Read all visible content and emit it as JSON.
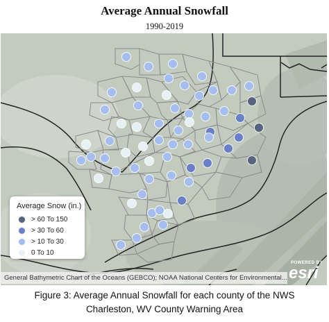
{
  "title": "Average Annual Snowfall",
  "subtitle": "1990-2019",
  "legend": {
    "title": "Average Snow (in.)",
    "items": [
      {
        "label": "> 60 To 150",
        "color": "#56647f"
      },
      {
        "label": "> 30 To 60",
        "color": "#6a80c6"
      },
      {
        "label": "> 10 To 30",
        "color": "#a6bdf0"
      },
      {
        "label": "0 To 10",
        "color": "#e5f1f4"
      }
    ]
  },
  "attribution": "General Bathymetric Chart of the Oceans (GEBCO); NOAA National Centers for Environmental...",
  "esri": {
    "powered_by": "POWERED BY",
    "logo": "esri"
  },
  "caption": {
    "line1": "Figure 3:  Average Annual Snowfall for each county of the NWS",
    "line2": "Charleston, WV County Warning Area"
  },
  "county_classes": [
    "> 10 To 30",
    "> 10 To 30",
    "> 10 To 30",
    "> 10 To 30",
    "> 10 To 30",
    "> 10 To 30",
    "> 10 To 30",
    "> 10 To 30",
    "> 10 To 30",
    "0 To 10",
    "0 To 10",
    "> 10 To 30",
    "> 10 To 30",
    "> 10 To 30",
    "> 10 To 30",
    "> 60 To 150",
    "0 To 10",
    "> 10 To 30",
    "> 10 To 30",
    "> 10 To 30",
    "> 10 To 30",
    "> 30 To 60",
    "0 To 10",
    "> 10 To 30",
    "> 10 To 30",
    "0 To 10",
    "0 To 10",
    "> 10 To 30",
    "> 30 To 60",
    "> 30 To 60",
    "> 60 To 150",
    "> 10 To 30",
    "0 To 10",
    "0 To 10",
    "> 10 To 30",
    "> 10 To 30",
    "> 30 To 60",
    "> 10 To 30",
    "> 10 To 30",
    "> 10 To 30",
    "> 10 To 30",
    "> 10 To 30",
    "0 To 10",
    "> 30 To 60",
    "> 60 To 150",
    "0 To 10",
    "> 10 To 30",
    "> 10 To 30",
    "> 10 To 30",
    "> 10 To 30",
    "> 30 To 60",
    "> 10 To 30",
    "0 To 10",
    "> 30 To 60",
    "> 10 To 30",
    "> 10 To 30",
    "> 10 To 30",
    "> 10 To 30",
    "> 10 To 30",
    "> 10 To 30",
    "0 To 10",
    "> 10 To 30"
  ]
}
